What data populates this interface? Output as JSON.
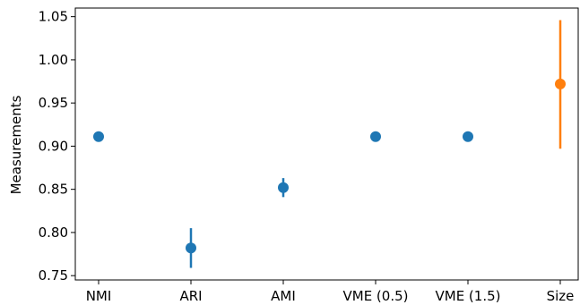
{
  "chart_data": {
    "type": "scatter",
    "title": "",
    "xlabel": "",
    "ylabel": "Measurements",
    "categories": [
      "NMI",
      "ARI",
      "AMI",
      "VME (0.5)",
      "VME (1.5)",
      "Size"
    ],
    "ylim": [
      0.745,
      1.06
    ],
    "yticks": [
      0.75,
      0.8,
      0.85,
      0.9,
      0.95,
      1.0,
      1.05
    ],
    "ytick_labels": [
      "0.75",
      "0.80",
      "0.85",
      "0.90",
      "0.95",
      "1.00",
      "1.05"
    ],
    "grid": false,
    "points": [
      {
        "category": "NMI",
        "value": 0.911,
        "err_low": 0.911,
        "err_high": 0.911,
        "color": "#1f77b4"
      },
      {
        "category": "ARI",
        "value": 0.782,
        "err_low": 0.759,
        "err_high": 0.805,
        "color": "#1f77b4"
      },
      {
        "category": "AMI",
        "value": 0.852,
        "err_low": 0.841,
        "err_high": 0.863,
        "color": "#1f77b4"
      },
      {
        "category": "VME (0.5)",
        "value": 0.911,
        "err_low": 0.911,
        "err_high": 0.911,
        "color": "#1f77b4"
      },
      {
        "category": "VME (1.5)",
        "value": 0.911,
        "err_low": 0.911,
        "err_high": 0.911,
        "color": "#1f77b4"
      },
      {
        "category": "Size",
        "value": 0.972,
        "err_low": 0.897,
        "err_high": 1.046,
        "color": "#ff7f0e"
      }
    ]
  }
}
